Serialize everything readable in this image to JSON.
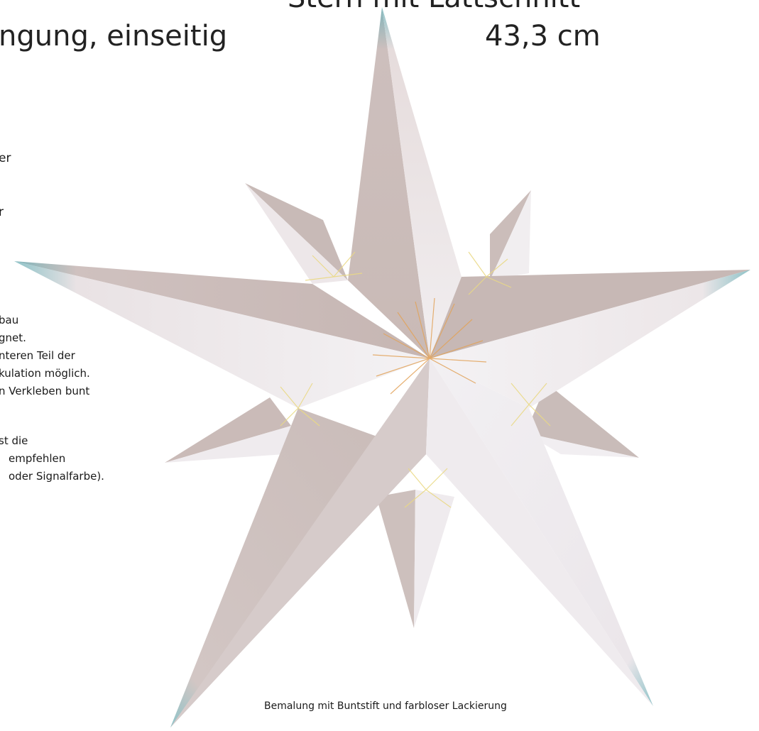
{
  "heading": {
    "top_fragment": "Stern mit Lattschnitt",
    "line_fragment": "ngung, einseitig",
    "size": "43,3 cm"
  },
  "left_text": {
    "fragments": [
      "er",
      "r",
      "bau",
      "gnet.",
      "nteren Teil der",
      "kulation möglich.",
      "n Verkleben bunt",
      "st die",
      "empfehlen",
      "oder Signalfarbe)."
    ]
  },
  "caption": "Bemalung mit Buntstift und farbloser Lackierung",
  "colors": {
    "paper_light": "#f4f2f4",
    "paper_shadow": "#cdbfbd",
    "tip_tint": "#8fc3c8",
    "ray_orange": "#e2a35a",
    "ray_yellow": "#ead985"
  }
}
